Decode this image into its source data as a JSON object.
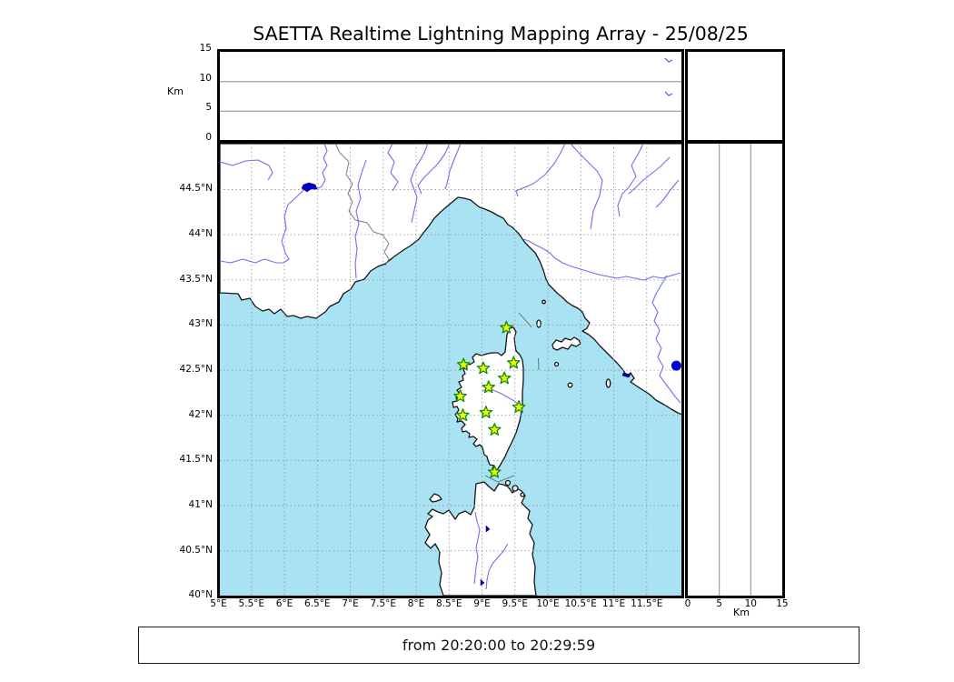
{
  "title": "SAETTA Realtime Lightning Mapping Array - 25/08/25",
  "footer": {
    "text": "from 20:20:00 to 20:29:59"
  },
  "altitude_axis": {
    "unit": "Km",
    "ticks": [
      0,
      5,
      10,
      15
    ],
    "max": 15
  },
  "map": {
    "lon_range": [
      5,
      12.05
    ],
    "lat_range": [
      40,
      45
    ],
    "lon_ticks": [
      {
        "value": 5,
        "label": "5°E"
      },
      {
        "value": 5.5,
        "label": "5.5°E"
      },
      {
        "value": 6,
        "label": "6°E"
      },
      {
        "value": 6.5,
        "label": "6.5°E"
      },
      {
        "value": 7,
        "label": "7°E"
      },
      {
        "value": 7.5,
        "label": "7.5°E"
      },
      {
        "value": 8,
        "label": "8°E"
      },
      {
        "value": 8.5,
        "label": "8.5°E"
      },
      {
        "value": 9,
        "label": "9°E"
      },
      {
        "value": 9.5,
        "label": "9.5°E"
      },
      {
        "value": 10,
        "label": "10°E"
      },
      {
        "value": 10.5,
        "label": "10.5°E"
      },
      {
        "value": 11,
        "label": "11°E"
      },
      {
        "value": 11.5,
        "label": "11.5°E"
      }
    ],
    "lat_ticks": [
      {
        "value": 44.5,
        "label": "44.5°N"
      },
      {
        "value": 44,
        "label": "44°N"
      },
      {
        "value": 43.5,
        "label": "43.5°N"
      },
      {
        "value": 43,
        "label": "43°N"
      },
      {
        "value": 42.5,
        "label": "42.5°N"
      },
      {
        "value": 42,
        "label": "42°N"
      },
      {
        "value": 41.5,
        "label": "41.5°N"
      },
      {
        "value": 41,
        "label": "41°N"
      },
      {
        "value": 40.5,
        "label": "40.5°N"
      },
      {
        "value": 40,
        "label": "40°N"
      }
    ],
    "stations": [
      {
        "lon": 9.37,
        "lat": 42.97
      },
      {
        "lon": 8.72,
        "lat": 42.56
      },
      {
        "lon": 9.02,
        "lat": 42.52
      },
      {
        "lon": 9.48,
        "lat": 42.58
      },
      {
        "lon": 9.34,
        "lat": 42.41
      },
      {
        "lon": 9.1,
        "lat": 42.31
      },
      {
        "lon": 8.67,
        "lat": 42.21
      },
      {
        "lon": 9.56,
        "lat": 42.09
      },
      {
        "lon": 8.71,
        "lat": 42.0
      },
      {
        "lon": 9.06,
        "lat": 42.03
      },
      {
        "lon": 9.19,
        "lat": 41.84
      },
      {
        "lon": 9.19,
        "lat": 41.37
      }
    ],
    "event_dot": {
      "lon": 11.95,
      "lat": 42.55,
      "color": "#0000dd"
    },
    "colors": {
      "sea": "#a9e2f3",
      "land": "#ffffff",
      "coast": "#151515",
      "river": "#6f6ff0",
      "border": "#7d7d7d",
      "grid": "#999999",
      "lake_fill": "#0000cc",
      "star_fill": "#fcfc00",
      "star_stroke": "#0a8f0a",
      "frame": "#000000"
    }
  }
}
